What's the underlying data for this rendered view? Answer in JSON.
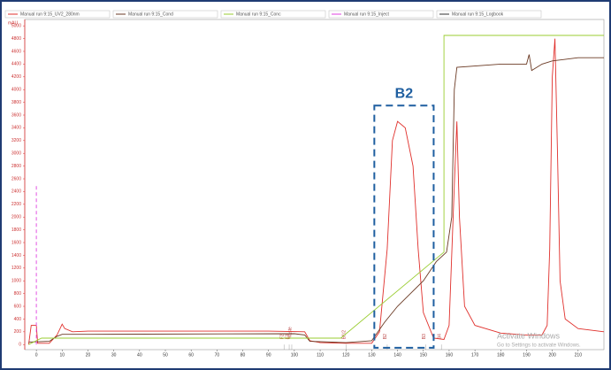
{
  "chart_data": {
    "type": "line",
    "y_label": "mAU",
    "xlim": [
      -4.5,
      220
    ],
    "ylim": [
      -80,
      5100
    ],
    "xticks": [
      0,
      10,
      20,
      30,
      40,
      50,
      60,
      70,
      80,
      90,
      100,
      110,
      120,
      130,
      140,
      150,
      160,
      170,
      180,
      190,
      200,
      210
    ],
    "yticks": [
      0,
      200,
      400,
      600,
      800,
      1000,
      1200,
      1400,
      1600,
      1800,
      2000,
      2200,
      2400,
      2600,
      2800,
      3000,
      3200,
      3400,
      3600,
      3800,
      4000,
      4200,
      4400,
      4600,
      4800,
      5000
    ],
    "series": [
      {
        "name": "Manual run 9:15_UV2_280nm",
        "color": "#e0302c",
        "x": [
          -3,
          -2,
          0,
          0.5,
          5,
          8,
          10,
          11,
          14,
          20,
          50,
          90,
          104,
          106,
          110,
          120,
          130,
          133,
          136,
          138,
          140,
          143,
          146,
          148,
          150,
          154,
          158,
          160,
          162,
          163,
          164,
          166,
          170,
          180,
          190,
          196,
          198,
          199,
          200,
          201,
          202,
          203,
          205,
          210,
          220
        ],
        "values": [
          0,
          300,
          300,
          20,
          20,
          150,
          320,
          250,
          200,
          210,
          210,
          210,
          200,
          60,
          30,
          20,
          20,
          200,
          1500,
          3200,
          3500,
          3400,
          2800,
          1500,
          500,
          100,
          80,
          300,
          2500,
          3500,
          2000,
          600,
          300,
          180,
          150,
          150,
          300,
          1500,
          4200,
          4800,
          3000,
          1000,
          400,
          250,
          200
        ]
      },
      {
        "name": "Manual run 9:15_Cond",
        "color": "#6b3a24",
        "x": [
          -3,
          5,
          8,
          10,
          20,
          100,
          104,
          106,
          120,
          130,
          135,
          140,
          150,
          155,
          159,
          161,
          162,
          163,
          180,
          190,
          191,
          192,
          196,
          200,
          210,
          220
        ],
        "values": [
          40,
          50,
          130,
          160,
          160,
          170,
          150,
          50,
          30,
          60,
          350,
          600,
          1000,
          1300,
          1450,
          2000,
          4000,
          4350,
          4400,
          4400,
          4550,
          4300,
          4400,
          4450,
          4500,
          4500
        ]
      },
      {
        "name": "Manual run 9:15_Conc",
        "color": "#9acd32",
        "x": [
          -3,
          2,
          118,
          158,
          158,
          220
        ],
        "values": [
          0,
          100,
          100,
          1450,
          4850,
          4850
        ]
      },
      {
        "name": "Manual run 9:15_Inject",
        "color": "#e040e0",
        "dashed": true,
        "x": [
          0,
          0
        ],
        "values": [
          0,
          2500
        ]
      },
      {
        "name": "Manual run 9:15_Logbook",
        "color": "#333333",
        "x": [],
        "values": []
      }
    ],
    "annotations": [
      {
        "x": 96,
        "label": "F2"
      },
      {
        "x": 98,
        "label": "F3"
      },
      {
        "x": 99,
        "label": "Waste"
      },
      {
        "x": 120,
        "label": "B1/2"
      },
      {
        "x": 136,
        "label": "B2"
      },
      {
        "x": 151,
        "label": "B3"
      },
      {
        "x": 157,
        "label": "B4"
      }
    ],
    "highlight": {
      "label": "B2",
      "color": "#1f5fa0",
      "x": [
        131,
        154
      ],
      "y": [
        -50,
        3750
      ]
    },
    "watermark": [
      "Activate Windows",
      "Go to Settings to activate Windows."
    ]
  }
}
